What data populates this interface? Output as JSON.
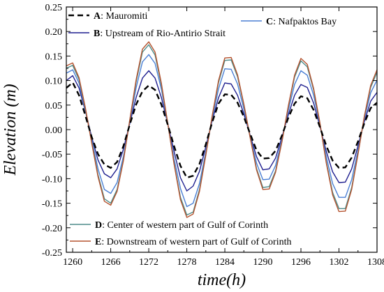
{
  "chart_data": {
    "type": "line",
    "xlabel": "time(h)",
    "ylabel": "Elevation (m)",
    "xlim": [
      1259,
      1308
    ],
    "ylim": [
      -0.25,
      0.25
    ],
    "xticks": [
      "1260",
      "1266",
      "1272",
      "1278",
      "1284",
      "1290",
      "1296",
      "1302",
      "1308"
    ],
    "yticks": [
      "0.25",
      "0.20",
      "0.15",
      "0.10",
      "0.05",
      "0.00",
      "-0.05",
      "-0.10",
      "-0.15",
      "-0.20",
      "-0.25"
    ],
    "grid": false,
    "x": [
      1259,
      1260,
      1261,
      1262,
      1263,
      1264,
      1265,
      1266,
      1267,
      1268,
      1269,
      1270,
      1271,
      1272,
      1273,
      1274,
      1275,
      1276,
      1277,
      1278,
      1279,
      1280,
      1281,
      1282,
      1283,
      1284,
      1285,
      1286,
      1287,
      1288,
      1289,
      1290,
      1291,
      1292,
      1293,
      1294,
      1295,
      1296,
      1297,
      1298,
      1299,
      1300,
      1301,
      1302,
      1303,
      1304,
      1305,
      1306,
      1307,
      1308
    ],
    "series": [
      {
        "name": "A: Mauromiti",
        "letter": "A",
        "label": ": Mauromiti",
        "color": "#000000",
        "style": "dashed",
        "values": [
          0.085,
          0.096,
          0.07,
          0.029,
          -0.015,
          -0.05,
          -0.071,
          -0.078,
          -0.066,
          -0.034,
          0.01,
          0.051,
          0.078,
          0.09,
          0.081,
          0.051,
          0.01,
          -0.034,
          -0.074,
          -0.098,
          -0.094,
          -0.07,
          -0.03,
          0.015,
          0.053,
          0.072,
          0.071,
          0.055,
          0.026,
          -0.009,
          -0.042,
          -0.059,
          -0.058,
          -0.043,
          -0.012,
          0.024,
          0.053,
          0.068,
          0.064,
          0.04,
          0.005,
          -0.033,
          -0.063,
          -0.078,
          -0.077,
          -0.057,
          -0.024,
          0.013,
          0.044,
          0.055
        ]
      },
      {
        "name": "B: Upstream of Rio-Antirio Strait",
        "letter": "B",
        "label": ": Upstream of Rio-Antirio Strait",
        "color": "#1f1f8f",
        "style": "solid",
        "values": [
          0.1,
          0.11,
          0.085,
          0.038,
          -0.015,
          -0.062,
          -0.09,
          -0.098,
          -0.08,
          -0.04,
          0.012,
          0.065,
          0.105,
          0.12,
          0.105,
          0.065,
          0.012,
          -0.045,
          -0.098,
          -0.125,
          -0.115,
          -0.085,
          -0.035,
          0.018,
          0.065,
          0.095,
          0.093,
          0.07,
          0.032,
          -0.012,
          -0.055,
          -0.082,
          -0.08,
          -0.058,
          -0.015,
          0.03,
          0.07,
          0.092,
          0.086,
          0.054,
          0.006,
          -0.044,
          -0.086,
          -0.108,
          -0.107,
          -0.08,
          -0.033,
          0.016,
          0.058,
          0.076
        ]
      },
      {
        "name": "C: Nafpaktos Bay",
        "letter": "C",
        "label": ": Nafpaktos Bay",
        "color": "#4a7fd4",
        "style": "solid",
        "values": [
          0.115,
          0.122,
          0.095,
          0.04,
          -0.02,
          -0.08,
          -0.122,
          -0.13,
          -0.108,
          -0.055,
          0.015,
          0.085,
          0.138,
          0.153,
          0.135,
          0.082,
          0.012,
          -0.06,
          -0.12,
          -0.157,
          -0.15,
          -0.11,
          -0.045,
          0.022,
          0.083,
          0.124,
          0.123,
          0.093,
          0.042,
          -0.015,
          -0.068,
          -0.102,
          -0.101,
          -0.073,
          -0.02,
          0.039,
          0.092,
          0.12,
          0.111,
          0.07,
          0.01,
          -0.055,
          -0.11,
          -0.138,
          -0.138,
          -0.102,
          -0.042,
          0.022,
          0.075,
          0.101
        ]
      },
      {
        "name": "D: Center of western part of Gulf of Corinth",
        "letter": "D",
        "label": ": Center of western part of Gulf of Corinth",
        "color": "#4d8c8a",
        "style": "solid",
        "values": [
          0.125,
          0.131,
          0.102,
          0.043,
          -0.025,
          -0.092,
          -0.141,
          -0.15,
          -0.122,
          -0.062,
          0.018,
          0.097,
          0.158,
          0.173,
          0.152,
          0.09,
          0.012,
          -0.069,
          -0.138,
          -0.174,
          -0.168,
          -0.122,
          -0.05,
          0.027,
          0.096,
          0.141,
          0.142,
          0.108,
          0.05,
          -0.016,
          -0.079,
          -0.118,
          -0.116,
          -0.084,
          -0.024,
          0.046,
          0.107,
          0.14,
          0.128,
          0.081,
          0.012,
          -0.065,
          -0.128,
          -0.161,
          -0.161,
          -0.118,
          -0.048,
          0.026,
          0.086,
          0.117
        ]
      },
      {
        "name": "E: Downstream of western part of Gulf of Corinth",
        "letter": "E",
        "label": ": Downstream of western part of Gulf of Corinth",
        "color": "#b5532f",
        "style": "solid",
        "values": [
          0.13,
          0.136,
          0.106,
          0.045,
          -0.027,
          -0.096,
          -0.146,
          -0.154,
          -0.126,
          -0.064,
          0.019,
          0.101,
          0.164,
          0.179,
          0.158,
          0.094,
          0.013,
          -0.071,
          -0.143,
          -0.179,
          -0.172,
          -0.126,
          -0.052,
          0.028,
          0.1,
          0.146,
          0.147,
          0.112,
          0.052,
          -0.017,
          -0.082,
          -0.122,
          -0.121,
          -0.087,
          -0.025,
          0.048,
          0.111,
          0.145,
          0.133,
          0.084,
          0.013,
          -0.068,
          -0.133,
          -0.167,
          -0.166,
          -0.122,
          -0.05,
          0.027,
          0.09,
          0.122
        ]
      }
    ],
    "legend": {
      "top_left": [
        "A",
        "B"
      ],
      "top_right": [
        "C"
      ],
      "bottom_left": [
        "D",
        "E"
      ]
    }
  }
}
